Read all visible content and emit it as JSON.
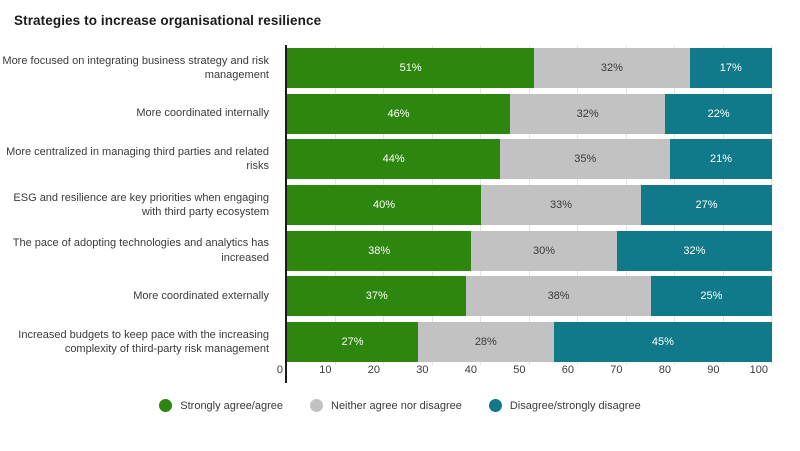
{
  "chart_data": {
    "type": "bar",
    "orientation": "horizontal",
    "stacked": true,
    "title": "Strategies to increase organisational resilience",
    "categories": [
      "More focused on integrating business strategy and risk management",
      "More coordinated internally",
      "More centralized in managing third parties and related risks",
      "ESG and resilience are key priorities when engaging with third party ecosystem",
      "The pace of adopting technologies and analytics has increased",
      "More coordinated externally",
      "Increased budgets to keep pace with the increasing complexity of third-party risk management"
    ],
    "series": [
      {
        "name": "Strongly agree/agree",
        "color": "#2d870f",
        "label_color": "#ffffff",
        "values": [
          51,
          46,
          44,
          40,
          38,
          37,
          27
        ]
      },
      {
        "name": "Neither agree nor disagree",
        "color": "#c2c2c2",
        "label_color": "#3a3a3a",
        "values": [
          32,
          32,
          35,
          33,
          30,
          38,
          28
        ]
      },
      {
        "name": "Disagree/strongly disagree",
        "color": "#107a8a",
        "label_color": "#ffffff",
        "values": [
          17,
          22,
          21,
          27,
          32,
          25,
          45
        ]
      }
    ],
    "value_suffix": "%",
    "xlabel": "",
    "ylabel": "",
    "xlim": [
      0,
      100
    ],
    "x_ticks": [
      0,
      10,
      20,
      30,
      40,
      50,
      60,
      70,
      80,
      90,
      100
    ],
    "grid": true,
    "legend_position": "bottom",
    "colors": {
      "axis": "#1a1a1a",
      "gridline": "#e3e3e3",
      "text": "#3a3a3a",
      "background": "#ffffff"
    }
  }
}
